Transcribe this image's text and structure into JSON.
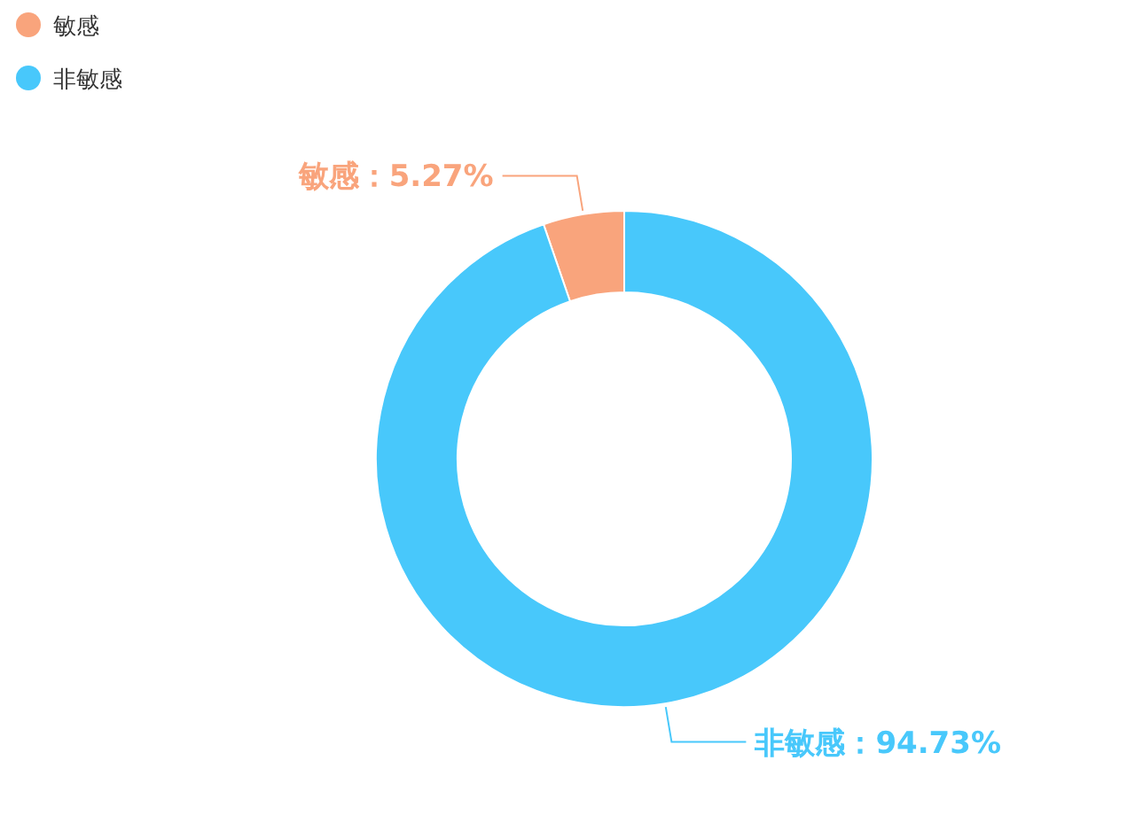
{
  "chart_data": {
    "type": "donut",
    "categories": [
      "敏感",
      "非敏感"
    ],
    "values": [
      5.27,
      94.73
    ],
    "value_labels": [
      "敏感：5.27%",
      "非敏感：94.73%"
    ],
    "colors": [
      "#f9a47c",
      "#48c8fb"
    ],
    "legend": "top left"
  }
}
